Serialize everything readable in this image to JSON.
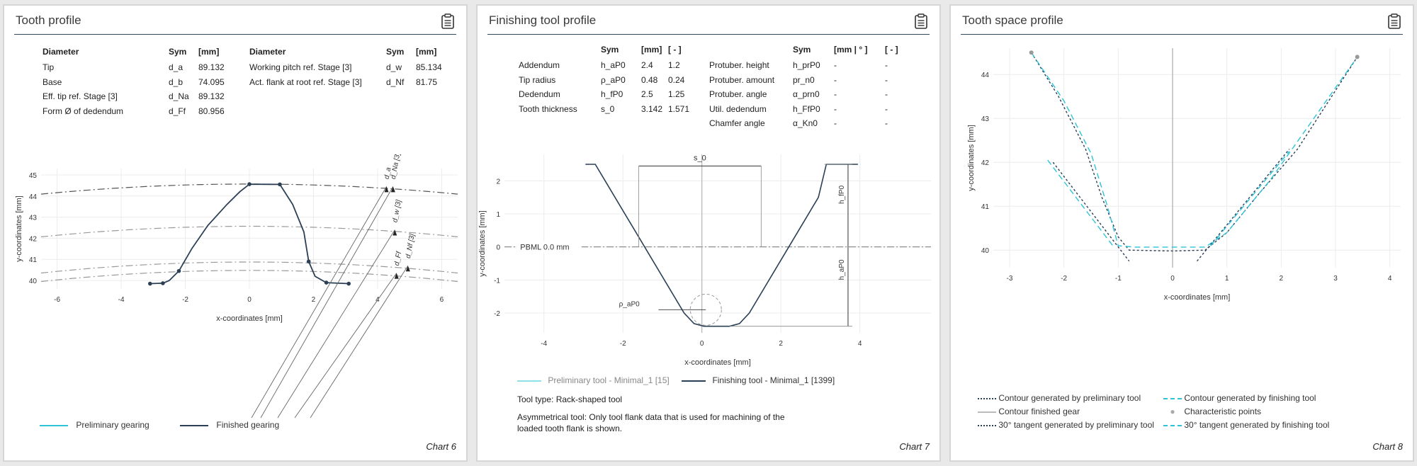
{
  "panels": [
    {
      "title": "Tooth profile",
      "caption": "Chart 6"
    },
    {
      "title": "Finishing tool profile",
      "caption": "Chart 7"
    },
    {
      "title": "Tooth space profile",
      "caption": "Chart 8"
    }
  ],
  "tooth_table": {
    "headers": [
      "Diameter",
      "Sym",
      "[mm]",
      "Diameter",
      "Sym",
      "[mm]"
    ],
    "left_rows": [
      {
        "label": "Tip",
        "sym": "d_a",
        "val": "89.132"
      },
      {
        "label": "Base",
        "sym": "d_b",
        "val": "74.095"
      },
      {
        "label": "Eff. tip ref. Stage [3]",
        "sym": "d_Na",
        "val": "89.132"
      },
      {
        "label": "Form Ø of dedendum",
        "sym": "d_Ff",
        "val": "80.956"
      }
    ],
    "right_rows": [
      {
        "label": "Working pitch ref. Stage [3]",
        "sym": "d_w",
        "val": "85.134"
      },
      {
        "label": "Act. flank at root ref. Stage [3]",
        "sym": "d_Nf",
        "val": "81.75"
      }
    ]
  },
  "tool_table": {
    "headers": [
      "Sym",
      "[mm]",
      "[ - ]",
      "Sym",
      "[mm | ° ]",
      "[ - ]"
    ],
    "rows": [
      {
        "l": "Addendum",
        "s": "h_aP0",
        "mm": "2.4",
        "r": "1.2",
        "l2": "Protuber. height",
        "s2": "h_prP0",
        "mm2": "-",
        "r2": "-"
      },
      {
        "l": "Tip radius",
        "s": "ρ_aP0",
        "mm": "0.48",
        "r": "0.24",
        "l2": "Protuber. amount",
        "s2": "pr_n0",
        "mm2": "-",
        "r2": "-"
      },
      {
        "l": "Dedendum",
        "s": "h_fP0",
        "mm": "2.5",
        "r": "1.25",
        "l2": "Protuber. angle",
        "s2": "α_prn0",
        "mm2": "-",
        "r2": "-"
      },
      {
        "l": "Tooth thickness",
        "s": "s_0",
        "mm": "3.142",
        "r": "1.571",
        "l2": "Util. dedendum",
        "s2": "h_FfP0",
        "mm2": "-",
        "r2": "-"
      },
      {
        "l": "",
        "s": "",
        "mm": "",
        "r": "",
        "l2": "Chamfer angle",
        "s2": "α_Kn0",
        "mm2": "-",
        "r2": "-"
      }
    ]
  },
  "chart_data": [
    {
      "type": "line",
      "xlabel": "x-coordinates [mm]",
      "ylabel": "y-coordinates [mm]",
      "xlim": [
        -6.5,
        6.5
      ],
      "ylim": [
        39.6,
        45.3
      ],
      "xticks": [
        -6,
        -4,
        -2,
        0,
        2,
        4,
        6
      ],
      "yticks": [
        40,
        41,
        42,
        43,
        44,
        45
      ],
      "grid": true,
      "legend": [
        "Preliminary gearing",
        "Finished gearing"
      ],
      "series": [
        {
          "name": "Finished gearing",
          "color": "#2b3f55",
          "points": [
            [
              -3.1,
              39.85
            ],
            [
              -2.7,
              39.87
            ],
            [
              -2.5,
              40.0
            ],
            [
              -2.2,
              40.45
            ],
            [
              -1.8,
              41.5
            ],
            [
              -1.3,
              42.6
            ],
            [
              -0.7,
              43.6
            ],
            [
              -0.3,
              44.2
            ],
            [
              0,
              44.56
            ],
            [
              0.95,
              44.55
            ],
            [
              1.35,
              43.6
            ],
            [
              1.7,
              42.3
            ],
            [
              1.85,
              40.9
            ],
            [
              2.05,
              40.2
            ],
            [
              2.4,
              39.9
            ],
            [
              3.1,
              39.85
            ]
          ],
          "markers": [
            [
              -3.1,
              39.85
            ],
            [
              -2.7,
              39.87
            ],
            [
              -2.2,
              40.45
            ],
            [
              0,
              44.56
            ],
            [
              0.95,
              44.55
            ],
            [
              1.85,
              40.9
            ],
            [
              2.4,
              39.9
            ],
            [
              3.1,
              39.85
            ]
          ]
        }
      ],
      "circles": [
        {
          "label": "d_a",
          "r": 44.566,
          "style": "dashdot-dark",
          "text": "d_a"
        },
        {
          "label": "d_Na",
          "r": 44.566,
          "text": "d_Na [3]"
        },
        {
          "label": "d_w",
          "r": 42.567,
          "style": "dashdot",
          "text": "d_w [3]"
        },
        {
          "label": "d_Nf",
          "r": 40.875,
          "style": "dashdot",
          "text": "d_Nf [3]"
        },
        {
          "label": "d_Ff",
          "r": 40.478,
          "style": "dashdot",
          "text": "d_Ff"
        }
      ]
    },
    {
      "type": "line",
      "xlabel": "x-coordinates [mm]",
      "ylabel": "y-coordinates [mm]",
      "xlim": [
        -5,
        5.8
      ],
      "ylim": [
        -2.6,
        2.8
      ],
      "xticks": [
        -4,
        -2,
        0,
        2,
        4
      ],
      "yticks": [
        -2,
        -1,
        0,
        1,
        2
      ],
      "grid": true,
      "legend": [
        "Preliminary tool - Minimal_1 [15]",
        "Finishing tool - Minimal_1 [1399]"
      ],
      "reference_line": {
        "y": 0,
        "label": "PBML 0.0 mm"
      },
      "annotations": {
        "s_0": "s_0",
        "h_fP0": "h_fP0",
        "h_aP0": "h_aP0",
        "rho": "ρ_aP0"
      },
      "series": [
        {
          "name": "Finishing tool - Minimal_1 [1399]",
          "color": "#2b3f55",
          "points": [
            [
              -2.95,
              2.5
            ],
            [
              -2.7,
              2.5
            ],
            [
              -0.45,
              -2.0
            ],
            [
              -0.2,
              -2.32
            ],
            [
              0.05,
              -2.4
            ],
            [
              0.7,
              -2.4
            ],
            [
              0.95,
              -2.32
            ],
            [
              1.2,
              -2.0
            ],
            [
              2.2,
              0
            ],
            [
              2.2,
              0
            ],
            [
              2.95,
              1.5
            ],
            [
              3.15,
              2.5
            ],
            [
              3.95,
              2.5
            ]
          ]
        }
      ]
    },
    {
      "type": "line",
      "xlabel": "x-coordinates [mm]",
      "ylabel": "y-coordinates [mm]",
      "xlim": [
        -3.3,
        4.2
      ],
      "ylim": [
        39.6,
        44.6
      ],
      "xticks": [
        -3,
        -2,
        -1,
        0,
        1,
        2,
        3,
        4
      ],
      "yticks": [
        40,
        41,
        42,
        43,
        44
      ],
      "grid": true,
      "legend": [
        "Contour generated by preliminary tool",
        "Contour generated by finishing tool",
        "Contour finished gear",
        "Characteristic points",
        "30° tangent generated by preliminary tool",
        "30° tangent generated by finishing tool"
      ],
      "series": [
        {
          "name": "Contour generated by preliminary tool",
          "color": "#2b3f55",
          "dash": "3,3",
          "points": [
            [
              -2.6,
              44.5
            ],
            [
              -2.1,
              43.5
            ],
            [
              -1.6,
              42.3
            ],
            [
              -1.3,
              41.2
            ],
            [
              -1.0,
              40.3
            ],
            [
              -0.8,
              40.0
            ],
            [
              0,
              39.98
            ],
            [
              0.6,
              40.0
            ],
            [
              1.0,
              40.4
            ],
            [
              1.6,
              41.3
            ],
            [
              2.3,
              42.3
            ],
            [
              3.4,
              44.4
            ]
          ]
        },
        {
          "name": "Contour generated by finishing tool",
          "color": "#2ec4d8",
          "dash": "8,5",
          "points": [
            [
              -2.6,
              44.5
            ],
            [
              -2.0,
              43.4
            ],
            [
              -1.5,
              42.2
            ],
            [
              -1.2,
              41.0
            ],
            [
              -1.0,
              40.1
            ],
            [
              -0.7,
              40.07
            ],
            [
              0.6,
              40.07
            ],
            [
              1.0,
              40.4
            ],
            [
              1.8,
              41.6
            ],
            [
              3.4,
              44.4
            ]
          ]
        },
        {
          "name": "30° tangent generated by preliminary tool",
          "color": "#2b3f55",
          "dash": "3,3",
          "points": [
            [
              -2.2,
              42.0
            ],
            [
              -0.8,
              39.75
            ]
          ]
        },
        {
          "name": "30° tangent generated by finishing tool",
          "color": "#2ec4d8",
          "dash": "8,5",
          "points": [
            [
              -2.3,
              42.05
            ],
            [
              -1.1,
              40.1
            ]
          ]
        },
        {
          "name": "30° tangent generated by preliminary tool",
          "color": "#2b3f55",
          "dash": "3,3",
          "points": [
            [
              0.45,
              39.75
            ],
            [
              2.15,
              42.3
            ]
          ]
        },
        {
          "name": "30° tangent generated by finishing tool",
          "color": "#2ec4d8",
          "dash": "8,5",
          "points": [
            [
              0.7,
              40.1
            ],
            [
              2.15,
              42.25
            ]
          ]
        }
      ],
      "characteristic_points": [
        [
          -2.6,
          44.5
        ],
        [
          3.4,
          44.4
        ]
      ]
    }
  ],
  "tool_notes": {
    "type": "Tool type: Rack-shaped tool",
    "asym": "Asymmetrical tool: Only tool flank data that is used for machining of the loaded tooth flank is shown."
  }
}
